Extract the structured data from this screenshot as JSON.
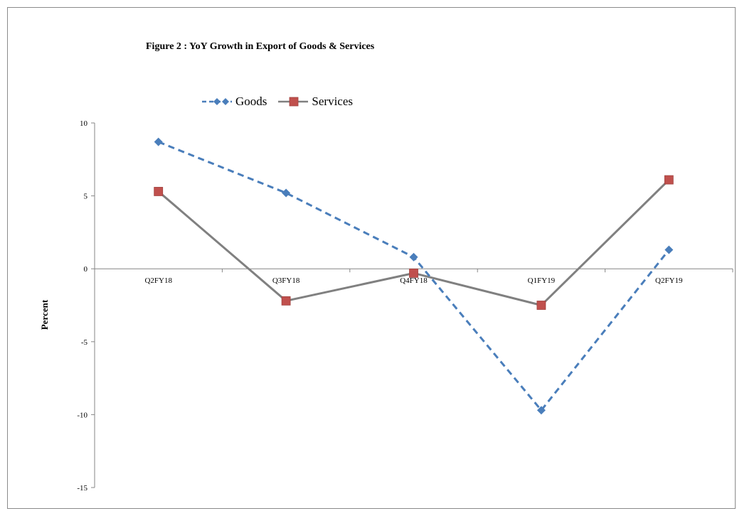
{
  "chart_data": {
    "type": "line",
    "title": "Figure 2 : YoY Growth in Export  of Goods & Services",
    "xlabel": "",
    "ylabel": "Percent",
    "categories": [
      "Q2FY18",
      "Q3FY18",
      "Q4FY18",
      "Q1FY19",
      "Q2FY19"
    ],
    "ylim": [
      -15,
      10
    ],
    "yticks": [
      10,
      5,
      0,
      -5,
      -10,
      -15
    ],
    "grid": false,
    "legend": "top",
    "series": [
      {
        "name": "Goods",
        "values": [
          8.7,
          5.2,
          0.8,
          -9.7,
          1.3
        ],
        "color": "#4a7ebb",
        "line_style": "dashed",
        "marker": "diamond"
      },
      {
        "name": "Services",
        "values": [
          5.3,
          -2.2,
          -0.3,
          -2.5,
          6.1
        ],
        "color": "#808080",
        "line_style": "solid",
        "marker": "square",
        "marker_color": "#c0504d"
      }
    ]
  }
}
